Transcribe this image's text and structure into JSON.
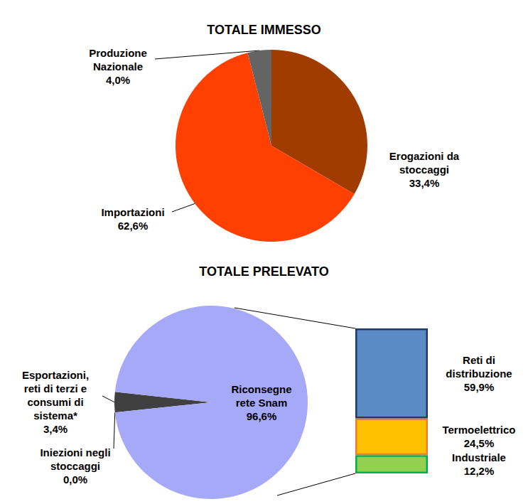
{
  "chart_data": [
    {
      "type": "pie",
      "title": "TOTALE IMMESSO",
      "categories": [
        "Erogazioni da\nstoccaggi",
        "Importazioni",
        "Produzione\nNazionale"
      ],
      "values": [
        33.4,
        62.6,
        4.0
      ],
      "value_labels": [
        "33,4%",
        "62,6%",
        "4,0%"
      ],
      "colors": [
        "#A03C00",
        "#FF4000",
        "#646464"
      ],
      "data_labels": true
    },
    {
      "type": "pie",
      "title": "TOTALE PRELEVATO",
      "categories": [
        "Iniezioni negli\nstoccaggi",
        "Esportazioni,\nreti di terzi e\nconsumi di\nsistema*",
        "Riconsegne\nrete Snam"
      ],
      "values": [
        0.0,
        3.4,
        96.6
      ],
      "value_labels": [
        "0,0%",
        "3,4%",
        "96,6%"
      ],
      "colors": [
        "#7F7F7F",
        "#404040",
        "#A6A8F8"
      ],
      "data_labels": true
    },
    {
      "type": "bar",
      "stacked": true,
      "tick_labels": false,
      "data_labels": true,
      "categories": [
        null
      ],
      "ylim": [
        0,
        96.6
      ],
      "series": [
        {
          "name": "Reti di\ndistribuzione",
          "color": "#5B8BC6",
          "values": [
            59.9
          ],
          "value_labels": [
            "59,9%"
          ]
        },
        {
          "name": "Termoelettrico",
          "color": "#FFC000",
          "values": [
            24.5
          ],
          "value_labels": [
            "24,5%"
          ]
        },
        {
          "name": "Industriale",
          "color": "#92D050",
          "values": [
            12.2
          ],
          "value_labels": [
            "12,2%"
          ]
        }
      ]
    }
  ]
}
